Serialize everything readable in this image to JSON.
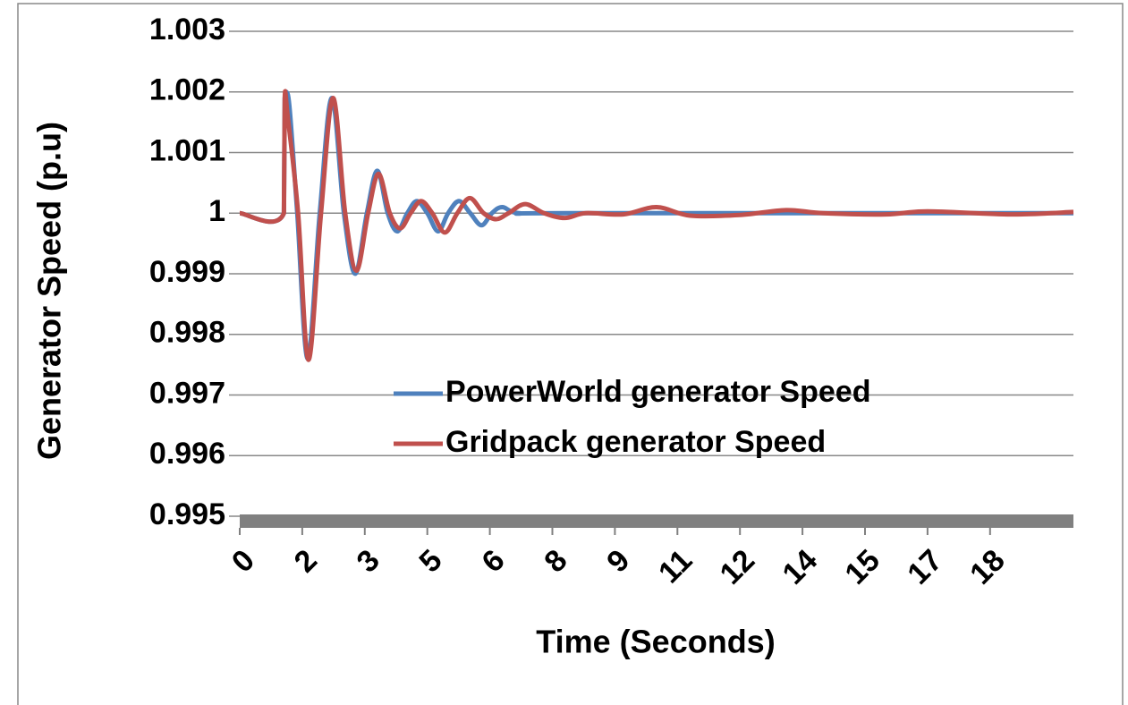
{
  "chart_data": {
    "type": "line",
    "xlabel": "Time (Seconds)",
    "ylabel": "Generator Speed (p.u)",
    "xlim": [
      0,
      20
    ],
    "xticks": [
      0,
      {
        "value": 1.5,
        "label": "2"
      },
      3,
      {
        "value": 4.5,
        "label": "5"
      },
      6,
      {
        "value": 7.5,
        "label": "8"
      },
      9,
      {
        "value": 10.5,
        "label": "11"
      },
      12,
      {
        "value": 13.5,
        "label": "14"
      },
      15,
      {
        "value": 16.5,
        "label": "17"
      },
      18
    ],
    "ylim": [
      0.995,
      1.003
    ],
    "yticks": [
      0.995,
      0.996,
      0.997,
      0.998,
      0.999,
      1,
      1.001,
      1.002,
      1.003
    ],
    "grid": true,
    "series": [
      {
        "name": "PowerWorld generator Speed",
        "color": "#4f81bd",
        "x": [
          0,
          1.06,
          1.08,
          1.12,
          1.2,
          1.38,
          1.63,
          1.92,
          2.21,
          2.5,
          2.77,
          3.05,
          3.3,
          3.55,
          3.78,
          4.02,
          4.25,
          4.5,
          4.76,
          5.0,
          5.26,
          5.53,
          5.8,
          6.05,
          6.3,
          6.7,
          8,
          20
        ],
        "values": [
          1,
          1,
          1.0019,
          1.002,
          1.0017,
          1,
          0.9976,
          1,
          1.0019,
          1,
          0.999,
          1,
          1.0007,
          1,
          0.9997,
          1,
          1.0002,
          1,
          0.9997,
          1,
          1.0002,
          1,
          0.9998,
          1,
          1.0001,
          1,
          1,
          1
        ]
      },
      {
        "name": "Gridpack generator Speed",
        "color": "#c0504d",
        "x": [
          0,
          1.06,
          1.08,
          1.15,
          1.4,
          1.65,
          1.95,
          2.24,
          2.53,
          2.8,
          3.08,
          3.33,
          3.6,
          3.85,
          4.1,
          4.35,
          4.62,
          4.92,
          5.22,
          5.52,
          5.85,
          6.15,
          6.45,
          6.85,
          7.3,
          7.8,
          8.3,
          9.2,
          10,
          10.8,
          12,
          13.1,
          14,
          15.5,
          16.5,
          18.5,
          20
        ],
        "values": [
          1,
          1,
          1.0019,
          1.0016,
          1,
          0.99758,
          1,
          1.0019,
          1,
          0.99905,
          1,
          1.00065,
          1,
          0.99975,
          1,
          1.0002,
          1,
          0.99968,
          1,
          1.00025,
          1,
          0.9999,
          1,
          1.00015,
          1,
          0.99992,
          1,
          0.99998,
          1.0001,
          0.99996,
          0.99997,
          1.00005,
          1,
          0.99998,
          1.00003,
          0.99998,
          1.00002
        ]
      }
    ]
  }
}
